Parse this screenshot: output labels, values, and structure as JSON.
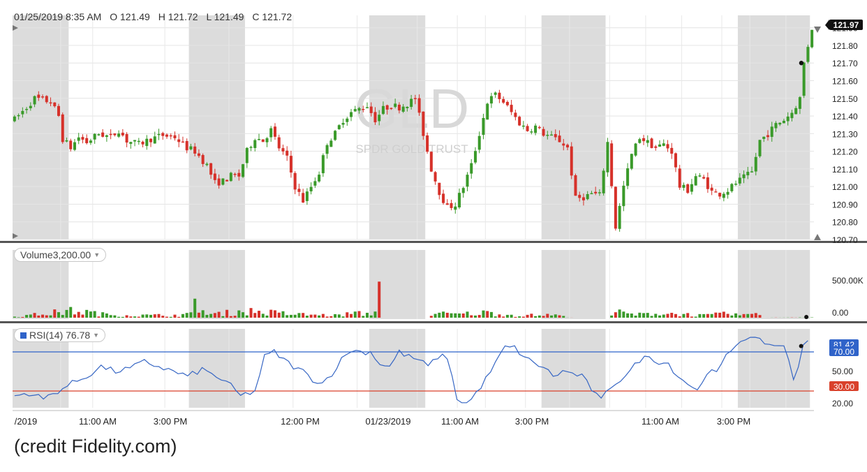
{
  "header": {
    "datetime": "01/25/2019 8:35 AM",
    "open": "O 121.49",
    "high": "H 121.72",
    "low": "L 121.49",
    "close": "C 121.72"
  },
  "watermark": {
    "symbol": "GLD",
    "name": "SPDR GOLD TRUST"
  },
  "price_panel": {
    "last_price": "121.97",
    "ticks": [
      "121.90",
      "121.80",
      "121.70",
      "121.60",
      "121.50",
      "121.40",
      "121.30",
      "121.20",
      "121.10",
      "121.00",
      "120.90",
      "120.80",
      "120.70"
    ]
  },
  "volume_panel": {
    "label": "Volume",
    "value": "3,200.00",
    "ticks": [
      "500.00K",
      "0.00"
    ]
  },
  "rsi_panel": {
    "label": "RSI(14)",
    "value": "76.78",
    "current_badge": "81.42",
    "overbought_badge": "70.00",
    "oversold_badge": "30.00",
    "ticks": [
      "50.00",
      "20.00"
    ],
    "overbought_color": "#2f63c9",
    "oversold_color": "#d9412b"
  },
  "x_axis": {
    "labels": [
      "/2019",
      "11:00 AM",
      "3:00 PM",
      "12:00 PM",
      "01/23/2019",
      "11:00 AM",
      "3:00 PM",
      "11:00 AM",
      "3:00 PM"
    ]
  },
  "colors": {
    "up": "#3a9a2a",
    "down": "#d6312a",
    "rsi_line": "#3666c4",
    "shade": "#dcdcdc"
  },
  "credit": "(credit Fidelity.com)",
  "chart_data": {
    "type": "candlestick",
    "ylim": [
      120.7,
      121.97
    ],
    "price_keypoints": [
      [
        0,
        121.38
      ],
      [
        3,
        121.45
      ],
      [
        5,
        121.5
      ],
      [
        9,
        121.48
      ],
      [
        11,
        121.4
      ],
      [
        12,
        121.27
      ],
      [
        14,
        121.22
      ],
      [
        16,
        121.28
      ],
      [
        18,
        121.25
      ],
      [
        21,
        121.3
      ],
      [
        24,
        121.28
      ],
      [
        26,
        121.32
      ],
      [
        28,
        121.26
      ],
      [
        31,
        121.24
      ],
      [
        34,
        121.27
      ],
      [
        37,
        121.29
      ],
      [
        40,
        121.28
      ],
      [
        43,
        121.22
      ],
      [
        45,
        121.2
      ],
      [
        48,
        121.12
      ],
      [
        50,
        121.02
      ],
      [
        52,
        121.03
      ],
      [
        54,
        121.06
      ],
      [
        56,
        121.06
      ],
      [
        58,
        121.2
      ],
      [
        60,
        121.28
      ],
      [
        62,
        121.26
      ],
      [
        64,
        121.32
      ],
      [
        66,
        121.22
      ],
      [
        68,
        121.16
      ],
      [
        70,
        121.0
      ],
      [
        72,
        120.92
      ],
      [
        74,
        121.0
      ],
      [
        76,
        121.08
      ],
      [
        78,
        121.25
      ],
      [
        80,
        121.3
      ],
      [
        82,
        121.38
      ],
      [
        84,
        121.42
      ],
      [
        86,
        121.44
      ],
      [
        88,
        121.46
      ],
      [
        90,
        121.38
      ],
      [
        92,
        121.44
      ],
      [
        94,
        121.46
      ],
      [
        96,
        121.45
      ],
      [
        98,
        121.47
      ],
      [
        100,
        121.5
      ],
      [
        102,
        121.3
      ],
      [
        104,
        121.1
      ],
      [
        106,
        120.97
      ],
      [
        108,
        120.88
      ],
      [
        110,
        120.9
      ],
      [
        112,
        121.0
      ],
      [
        114,
        121.12
      ],
      [
        116,
        121.3
      ],
      [
        118,
        121.48
      ],
      [
        120,
        121.52
      ],
      [
        122,
        121.48
      ],
      [
        124,
        121.42
      ],
      [
        126,
        121.36
      ],
      [
        128,
        121.32
      ],
      [
        130,
        121.34
      ],
      [
        132,
        121.3
      ],
      [
        134,
        121.28
      ],
      [
        136,
        121.26
      ],
      [
        138,
        121.22
      ],
      [
        140,
        120.93
      ],
      [
        142,
        120.94
      ],
      [
        144,
        120.96
      ],
      [
        146,
        120.95
      ],
      [
        148,
        121.25
      ],
      [
        150,
        120.77
      ],
      [
        152,
        121.0
      ],
      [
        154,
        121.18
      ],
      [
        156,
        121.28
      ],
      [
        158,
        121.25
      ],
      [
        160,
        121.22
      ],
      [
        162,
        121.24
      ],
      [
        164,
        121.2
      ],
      [
        166,
        121.0
      ],
      [
        168,
        120.98
      ],
      [
        170,
        121.06
      ],
      [
        172,
        121.04
      ],
      [
        174,
        120.97
      ],
      [
        176,
        120.96
      ],
      [
        178,
        120.98
      ],
      [
        180,
        121.02
      ],
      [
        182,
        121.05
      ],
      [
        184,
        121.08
      ],
      [
        186,
        121.26
      ],
      [
        188,
        121.3
      ],
      [
        190,
        121.35
      ],
      [
        192,
        121.38
      ],
      [
        194,
        121.42
      ],
      [
        196,
        121.5
      ],
      [
        197,
        121.7
      ],
      [
        198,
        121.8
      ],
      [
        199,
        121.9
      ]
    ],
    "volume_keypoints": [
      [
        0,
        8000
      ],
      [
        14,
        60000
      ],
      [
        17,
        55000
      ],
      [
        22,
        30000
      ],
      [
        30,
        20000
      ],
      [
        40,
        22000
      ],
      [
        44,
        30000
      ],
      [
        45,
        160000
      ],
      [
        48,
        25000
      ],
      [
        58,
        60000
      ],
      [
        70,
        30000
      ],
      [
        80,
        20000
      ],
      [
        85,
        40000
      ],
      [
        88,
        30000
      ],
      [
        90,
        60000
      ],
      [
        91,
        270000
      ],
      [
        92,
        0
      ],
      [
        103,
        0
      ],
      [
        104,
        40000
      ],
      [
        110,
        30000
      ],
      [
        118,
        45000
      ],
      [
        125,
        20000
      ],
      [
        135,
        25000
      ],
      [
        138,
        3000
      ],
      [
        140,
        0
      ],
      [
        148,
        0
      ],
      [
        150,
        50000
      ],
      [
        155,
        25000
      ],
      [
        160,
        40000
      ],
      [
        165,
        35000
      ],
      [
        172,
        20000
      ],
      [
        178,
        35000
      ],
      [
        183,
        20000
      ],
      [
        186,
        70000
      ],
      [
        187,
        0
      ],
      [
        199,
        3200
      ]
    ],
    "rsi_keypoints": [
      [
        0,
        25
      ],
      [
        3,
        28
      ],
      [
        6,
        22
      ],
      [
        9,
        30
      ],
      [
        12,
        38
      ],
      [
        15,
        45
      ],
      [
        18,
        55
      ],
      [
        21,
        50
      ],
      [
        24,
        53
      ],
      [
        27,
        60
      ],
      [
        30,
        55
      ],
      [
        33,
        50
      ],
      [
        36,
        45
      ],
      [
        39,
        52
      ],
      [
        42,
        45
      ],
      [
        45,
        35
      ],
      [
        47,
        25
      ],
      [
        50,
        30
      ],
      [
        52,
        65
      ],
      [
        54,
        70
      ],
      [
        56,
        62
      ],
      [
        58,
        55
      ],
      [
        60,
        50
      ],
      [
        62,
        42
      ],
      [
        64,
        38
      ],
      [
        66,
        48
      ],
      [
        68,
        62
      ],
      [
        70,
        72
      ],
      [
        72,
        70
      ],
      [
        74,
        70
      ],
      [
        76,
        58
      ],
      [
        78,
        55
      ],
      [
        80,
        70
      ],
      [
        82,
        65
      ],
      [
        84,
        62
      ],
      [
        86,
        55
      ],
      [
        88,
        65
      ],
      [
        90,
        65
      ],
      [
        92,
        22
      ],
      [
        94,
        15
      ],
      [
        96,
        28
      ],
      [
        98,
        42
      ],
      [
        100,
        58
      ],
      [
        102,
        75
      ],
      [
        104,
        74
      ],
      [
        106,
        65
      ],
      [
        108,
        58
      ],
      [
        110,
        55
      ],
      [
        112,
        45
      ],
      [
        114,
        50
      ],
      [
        116,
        48
      ],
      [
        118,
        45
      ],
      [
        120,
        32
      ],
      [
        122,
        20
      ],
      [
        124,
        35
      ],
      [
        126,
        42
      ],
      [
        128,
        50
      ],
      [
        130,
        62
      ],
      [
        132,
        65
      ],
      [
        134,
        60
      ],
      [
        136,
        58
      ],
      [
        138,
        45
      ],
      [
        140,
        38
      ],
      [
        142,
        30
      ],
      [
        144,
        50
      ],
      [
        146,
        48
      ],
      [
        148,
        65
      ],
      [
        150,
        78
      ],
      [
        152,
        85
      ],
      [
        154,
        82
      ],
      [
        156,
        80
      ],
      [
        158,
        76
      ],
      [
        160,
        78
      ],
      [
        161,
        60
      ],
      [
        162,
        40
      ],
      [
        163,
        55
      ],
      [
        164,
        80
      ],
      [
        165,
        81
      ]
    ],
    "rsi_overbought": 70,
    "rsi_oversold": 30,
    "shaded_ranges": [
      [
        0,
        14
      ],
      [
        44,
        58
      ],
      [
        89,
        103
      ],
      [
        132,
        148
      ],
      [
        181,
        199
      ]
    ]
  }
}
